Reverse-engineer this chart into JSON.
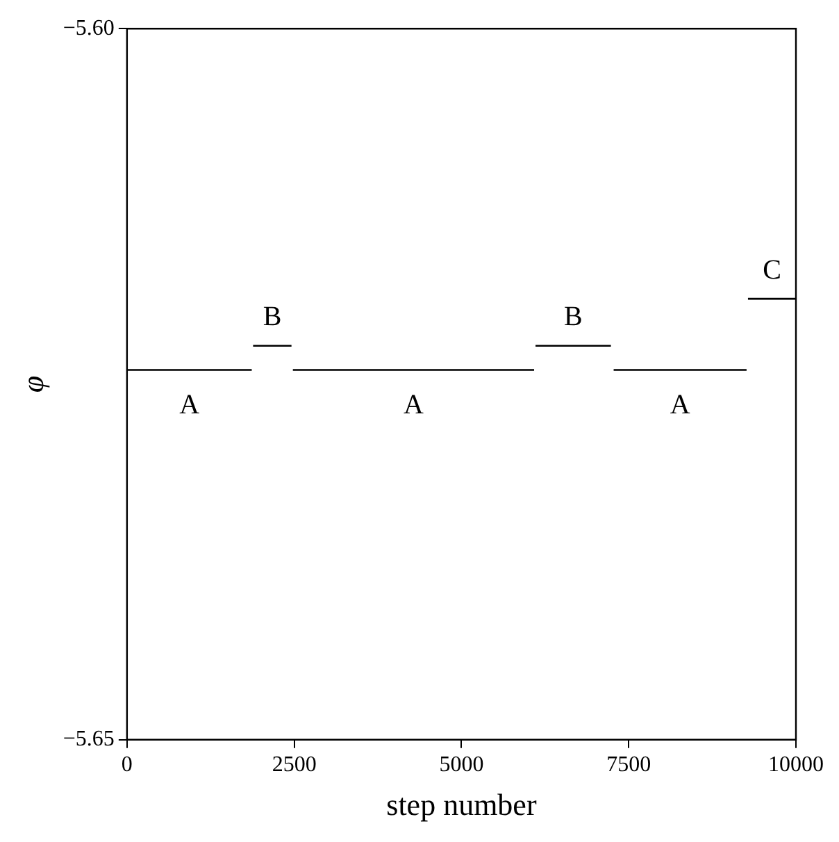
{
  "chart_data": {
    "type": "line",
    "xlabel": "step number",
    "ylabel": "φ",
    "xlim": [
      0,
      10000
    ],
    "xticks": [
      0,
      2500,
      5000,
      7500,
      10000
    ],
    "ylim": [
      -5.65,
      -5.6
    ],
    "yticks": [
      {
        "value": -5.65,
        "label": "−5.65"
      },
      {
        "value": -5.6,
        "label": "−5.60"
      }
    ],
    "grid": false,
    "legend": false,
    "marker": "none",
    "line_style": "solid",
    "series": [
      {
        "name": "A",
        "color": "#000000",
        "x": [
          0,
          1865
        ],
        "values": [
          -5.624,
          -5.624
        ]
      },
      {
        "name": "B",
        "color": "#000000",
        "x": [
          1885,
          2459
        ],
        "values": [
          -5.6223,
          -5.6223
        ]
      },
      {
        "name": "A",
        "color": "#000000",
        "x": [
          2480,
          6086
        ],
        "values": [
          -5.624,
          -5.624
        ]
      },
      {
        "name": "B",
        "color": "#000000",
        "x": [
          6107,
          7234
        ],
        "values": [
          -5.6223,
          -5.6223
        ]
      },
      {
        "name": "A",
        "color": "#000000",
        "x": [
          7275,
          9262
        ],
        "values": [
          -5.624,
          -5.624
        ]
      },
      {
        "name": "C",
        "color": "#000000",
        "x": [
          9283,
          10000
        ],
        "values": [
          -5.619,
          -5.619
        ]
      }
    ]
  }
}
